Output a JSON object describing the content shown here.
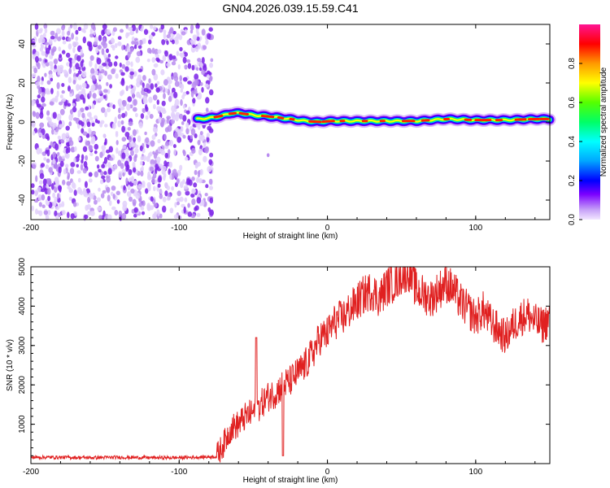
{
  "chart_data": [
    {
      "type": "heatmap",
      "title": "GN04.2026.039.15.59.C41",
      "xlabel": "Height of straight line (km)",
      "ylabel": "Frequency (Hz)",
      "xlim": [
        -200,
        150
      ],
      "ylim": [
        -50,
        50
      ],
      "xticks": [
        -200,
        -100,
        0,
        100
      ],
      "yticks": [
        -40,
        -20,
        0,
        20,
        40
      ],
      "colorbar": {
        "label": "Normalized spectral amplitude",
        "range": [
          0,
          1
        ],
        "ticks": [
          "0.0",
          "0.2",
          "0.4",
          "0.6",
          "0.8"
        ],
        "tick_values": [
          0.0,
          0.2,
          0.4,
          0.6,
          0.8
        ]
      },
      "noise_region_height_km": [
        -200,
        -78
      ],
      "signal_track": {
        "height_km": [
          -88,
          -80,
          -72,
          -65,
          -58,
          -50,
          -42,
          -35,
          -25,
          -15,
          -5,
          0,
          20,
          40,
          60,
          80,
          100,
          120,
          140,
          150
        ],
        "frequency_hz": [
          1.5,
          2.0,
          3.0,
          4.5,
          4.5,
          3.5,
          3.0,
          2.5,
          1.5,
          0.5,
          0.0,
          0.5,
          0.5,
          0.5,
          0.5,
          1.5,
          1.0,
          1.0,
          1.5,
          1.5
        ]
      }
    },
    {
      "type": "line",
      "title": "",
      "xlabel": "Height of straight line (km)",
      "ylabel": "SNR (10 * v/v)",
      "xlim": [
        -200,
        150
      ],
      "ylim": [
        0,
        5000
      ],
      "xticks": [
        -200,
        -100,
        0,
        100
      ],
      "yticks": [
        1000,
        2000,
        3000,
        4000,
        5000
      ],
      "series": [
        {
          "name": "SNR",
          "color": "#e02020",
          "x": [
            -200,
            -180,
            -160,
            -140,
            -120,
            -100,
            -80,
            -75,
            -70,
            -65,
            -60,
            -55,
            -50,
            -45,
            -40,
            -35,
            -30,
            -25,
            -20,
            -15,
            -10,
            -5,
            0,
            5,
            10,
            15,
            20,
            25,
            30,
            35,
            40,
            45,
            50,
            55,
            60,
            65,
            70,
            75,
            80,
            85,
            90,
            95,
            100,
            105,
            110,
            115,
            120,
            125,
            130,
            135,
            140,
            145,
            150
          ],
          "values": [
            160,
            160,
            150,
            160,
            150,
            150,
            170,
            180,
            500,
            900,
            1000,
            1200,
            1300,
            1500,
            1700,
            1800,
            2000,
            2100,
            2300,
            2500,
            2800,
            3200,
            3300,
            3600,
            3700,
            3900,
            4100,
            4300,
            4400,
            4200,
            4500,
            4600,
            4800,
            4900,
            4400,
            4300,
            4200,
            4400,
            4600,
            4400,
            4100,
            3900,
            3700,
            3900,
            3600,
            3400,
            3200,
            3500,
            3700,
            3800,
            3600,
            3500,
            3700
          ]
        }
      ],
      "events": [
        {
          "x": -48,
          "value": 3200
        },
        {
          "x": -30,
          "value": 200
        }
      ]
    }
  ]
}
